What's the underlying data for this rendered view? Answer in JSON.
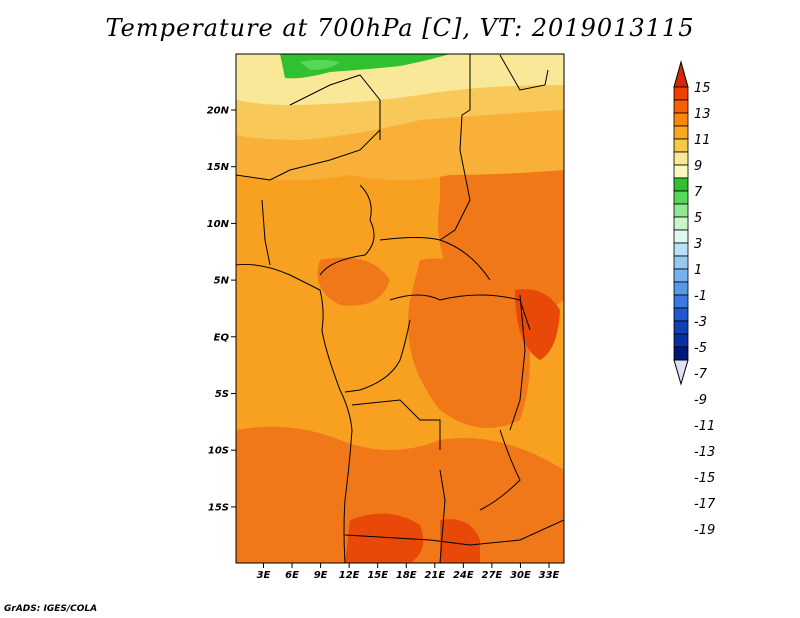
{
  "title": "Temperature at 700hPa [C], VT: 2019013115",
  "credit": "GrADS: IGES/COLA",
  "lat_ticks": [
    "20N",
    "15N",
    "10N",
    "5N",
    "EQ",
    "5S",
    "10S",
    "15S"
  ],
  "lon_ticks": [
    "3E",
    "6E",
    "9E",
    "12E",
    "15E",
    "18E",
    "21E",
    "24E",
    "27E",
    "30E",
    "33E"
  ],
  "colorbar": {
    "labels": [
      "15",
      "13",
      "11",
      "9",
      "7",
      "5",
      "3",
      "1",
      "-1",
      "-3",
      "-5",
      "-7",
      "-9",
      "-11",
      "-13",
      "-15",
      "-17",
      "-19"
    ],
    "colors": [
      "#d82800",
      "#f04000",
      "#f86008",
      "#f88808",
      "#f8a820",
      "#f8c848",
      "#f8e898",
      "#f8f8c0",
      "#30c030",
      "#58d858",
      "#90e890",
      "#c8f8c8",
      "#e0f8f0",
      "#b8e0f8",
      "#98c8f0",
      "#78b0f0",
      "#5898e8",
      "#3878e0",
      "#2058d0",
      "#1040b8",
      "#0830a0",
      "#001878",
      "#e0e0f8"
    ]
  }
}
